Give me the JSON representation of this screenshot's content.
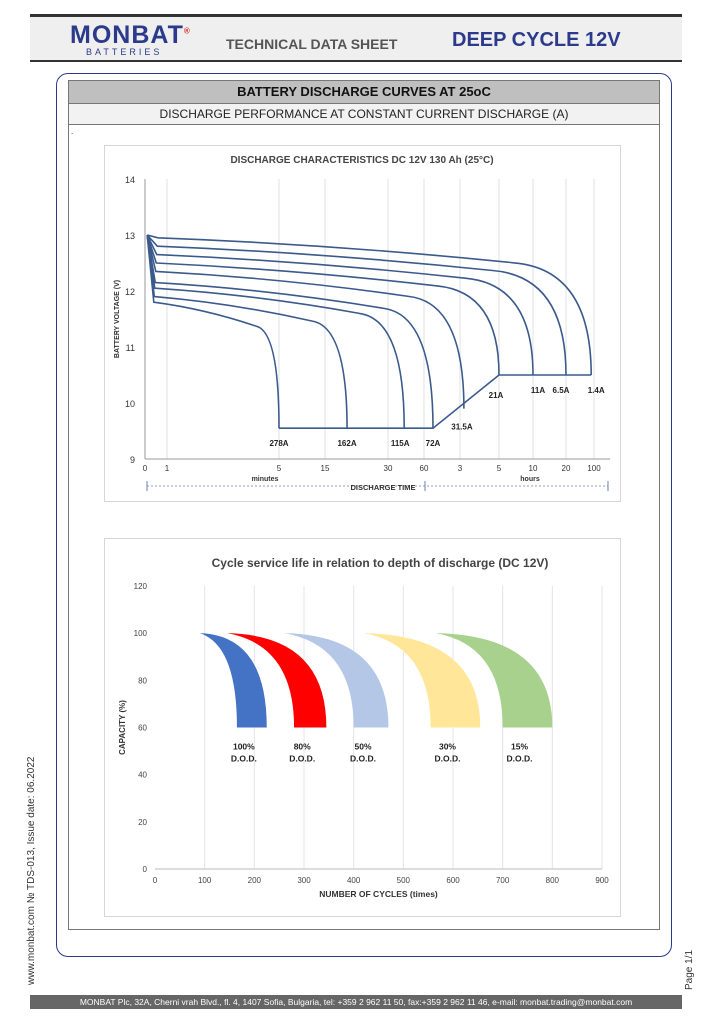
{
  "header": {
    "logo_main": "MONBAT",
    "logo_reg": "®",
    "logo_sub": "BATTERIES",
    "doc_title": "TECHNICAL DATA SHEET",
    "product": "DEEP CYCLE 12V",
    "brand_color": "#2c3a8c"
  },
  "section": {
    "title": "BATTERY DISCHARGE CURVES AT 25oC",
    "subtitle": "DISCHARGE PERFORMANCE AT CONSTANT CURRENT DISCHARGE (A)",
    "mark": "."
  },
  "chart_data": [
    {
      "type": "line",
      "title": "DISCHARGE CHARACTERISTICS DC 12V 130 Ah (25°C)",
      "ylabel": "BATTERY VOLTAGE (V)",
      "xlabel": "DISCHARGE TIME",
      "ylim": [
        9,
        14
      ],
      "yticks": [
        9,
        10,
        11,
        12,
        13,
        14
      ],
      "x_tick_labels": [
        "0",
        "1",
        "5",
        "15",
        "30",
        "60",
        "3",
        "5",
        "10",
        "20",
        "100"
      ],
      "x_unit_minutes": "minutes",
      "x_unit_hours": "hours",
      "grid": "vertical",
      "series": [
        {
          "name": "278A",
          "end_tick": 2.0,
          "v_start": 11.8,
          "v_end": 9.55
        },
        {
          "name": "162A",
          "end_tick": 3.35,
          "v_start": 11.9,
          "v_end": 9.55
        },
        {
          "name": "115A",
          "end_tick": 4.45,
          "v_start": 12.05,
          "v_end": 9.55
        },
        {
          "name": "72A",
          "end_tick": 5.25,
          "v_start": 12.15,
          "v_end": 9.55
        },
        {
          "name": "31.5A",
          "end_tick": 6.1,
          "v_start": 12.35,
          "v_end": 9.9
        },
        {
          "name": "21A",
          "end_tick": 7.0,
          "v_start": 12.5,
          "v_end": 10.5
        },
        {
          "name": "11A",
          "end_tick": 8.0,
          "v_start": 12.65,
          "v_end": 10.5
        },
        {
          "name": "6.5A",
          "end_tick": 9.0,
          "v_start": 12.8,
          "v_end": 10.5
        },
        {
          "name": "1.4A",
          "end_tick": 9.9,
          "v_start": 12.95,
          "v_end": 10.5
        }
      ],
      "cutoff_line": [
        [
          2.0,
          9.55
        ],
        [
          5.25,
          9.55
        ],
        [
          7.0,
          10.5
        ],
        [
          9.9,
          10.5
        ]
      ]
    },
    {
      "type": "area",
      "title": "Cycle service life in relation to depth of discharge (DC 12V)",
      "ylabel": "CAPACITY (%)",
      "xlabel": "NUMBER OF CYCLES (times)",
      "ylim": [
        0,
        120
      ],
      "yticks": [
        0,
        20,
        40,
        60,
        80,
        100,
        120
      ],
      "xlim": [
        0,
        900
      ],
      "xticks": [
        0,
        100,
        200,
        300,
        400,
        500,
        600,
        700,
        800,
        900
      ],
      "grid": "vertical",
      "series": [
        {
          "name": "100%",
          "label2": "D.O.D.",
          "start": 90,
          "inner_end": 165,
          "outer_end": 225,
          "color": "#4472c4"
        },
        {
          "name": "80%",
          "label2": "D.O.D.",
          "start": 145,
          "inner_end": 280,
          "outer_end": 345,
          "color": "#ff0000"
        },
        {
          "name": "50%",
          "label2": "D.O.D.",
          "start": 260,
          "inner_end": 400,
          "outer_end": 470,
          "color": "#b4c7e7"
        },
        {
          "name": "30%",
          "label2": "D.O.D.",
          "start": 420,
          "inner_end": 555,
          "outer_end": 655,
          "color": "#ffe699"
        },
        {
          "name": "15%",
          "label2": "D.O.D.",
          "start": 565,
          "inner_end": 700,
          "outer_end": 800,
          "color": "#a9d18e"
        }
      ]
    }
  ],
  "side": {
    "left": "www.monbat.com   № TDS-013, Issue date: 06.2022",
    "right": "Page 1/1"
  },
  "footer": {
    "text": "MONBAT Plc, 32A, Cherni vrah Blvd., fl. 4, 1407 Sofia, Bulgaria, tel: +359 2 962 11 50, fax:+359 2 962 11 46, e-mail: monbat.trading@monbat.com"
  }
}
